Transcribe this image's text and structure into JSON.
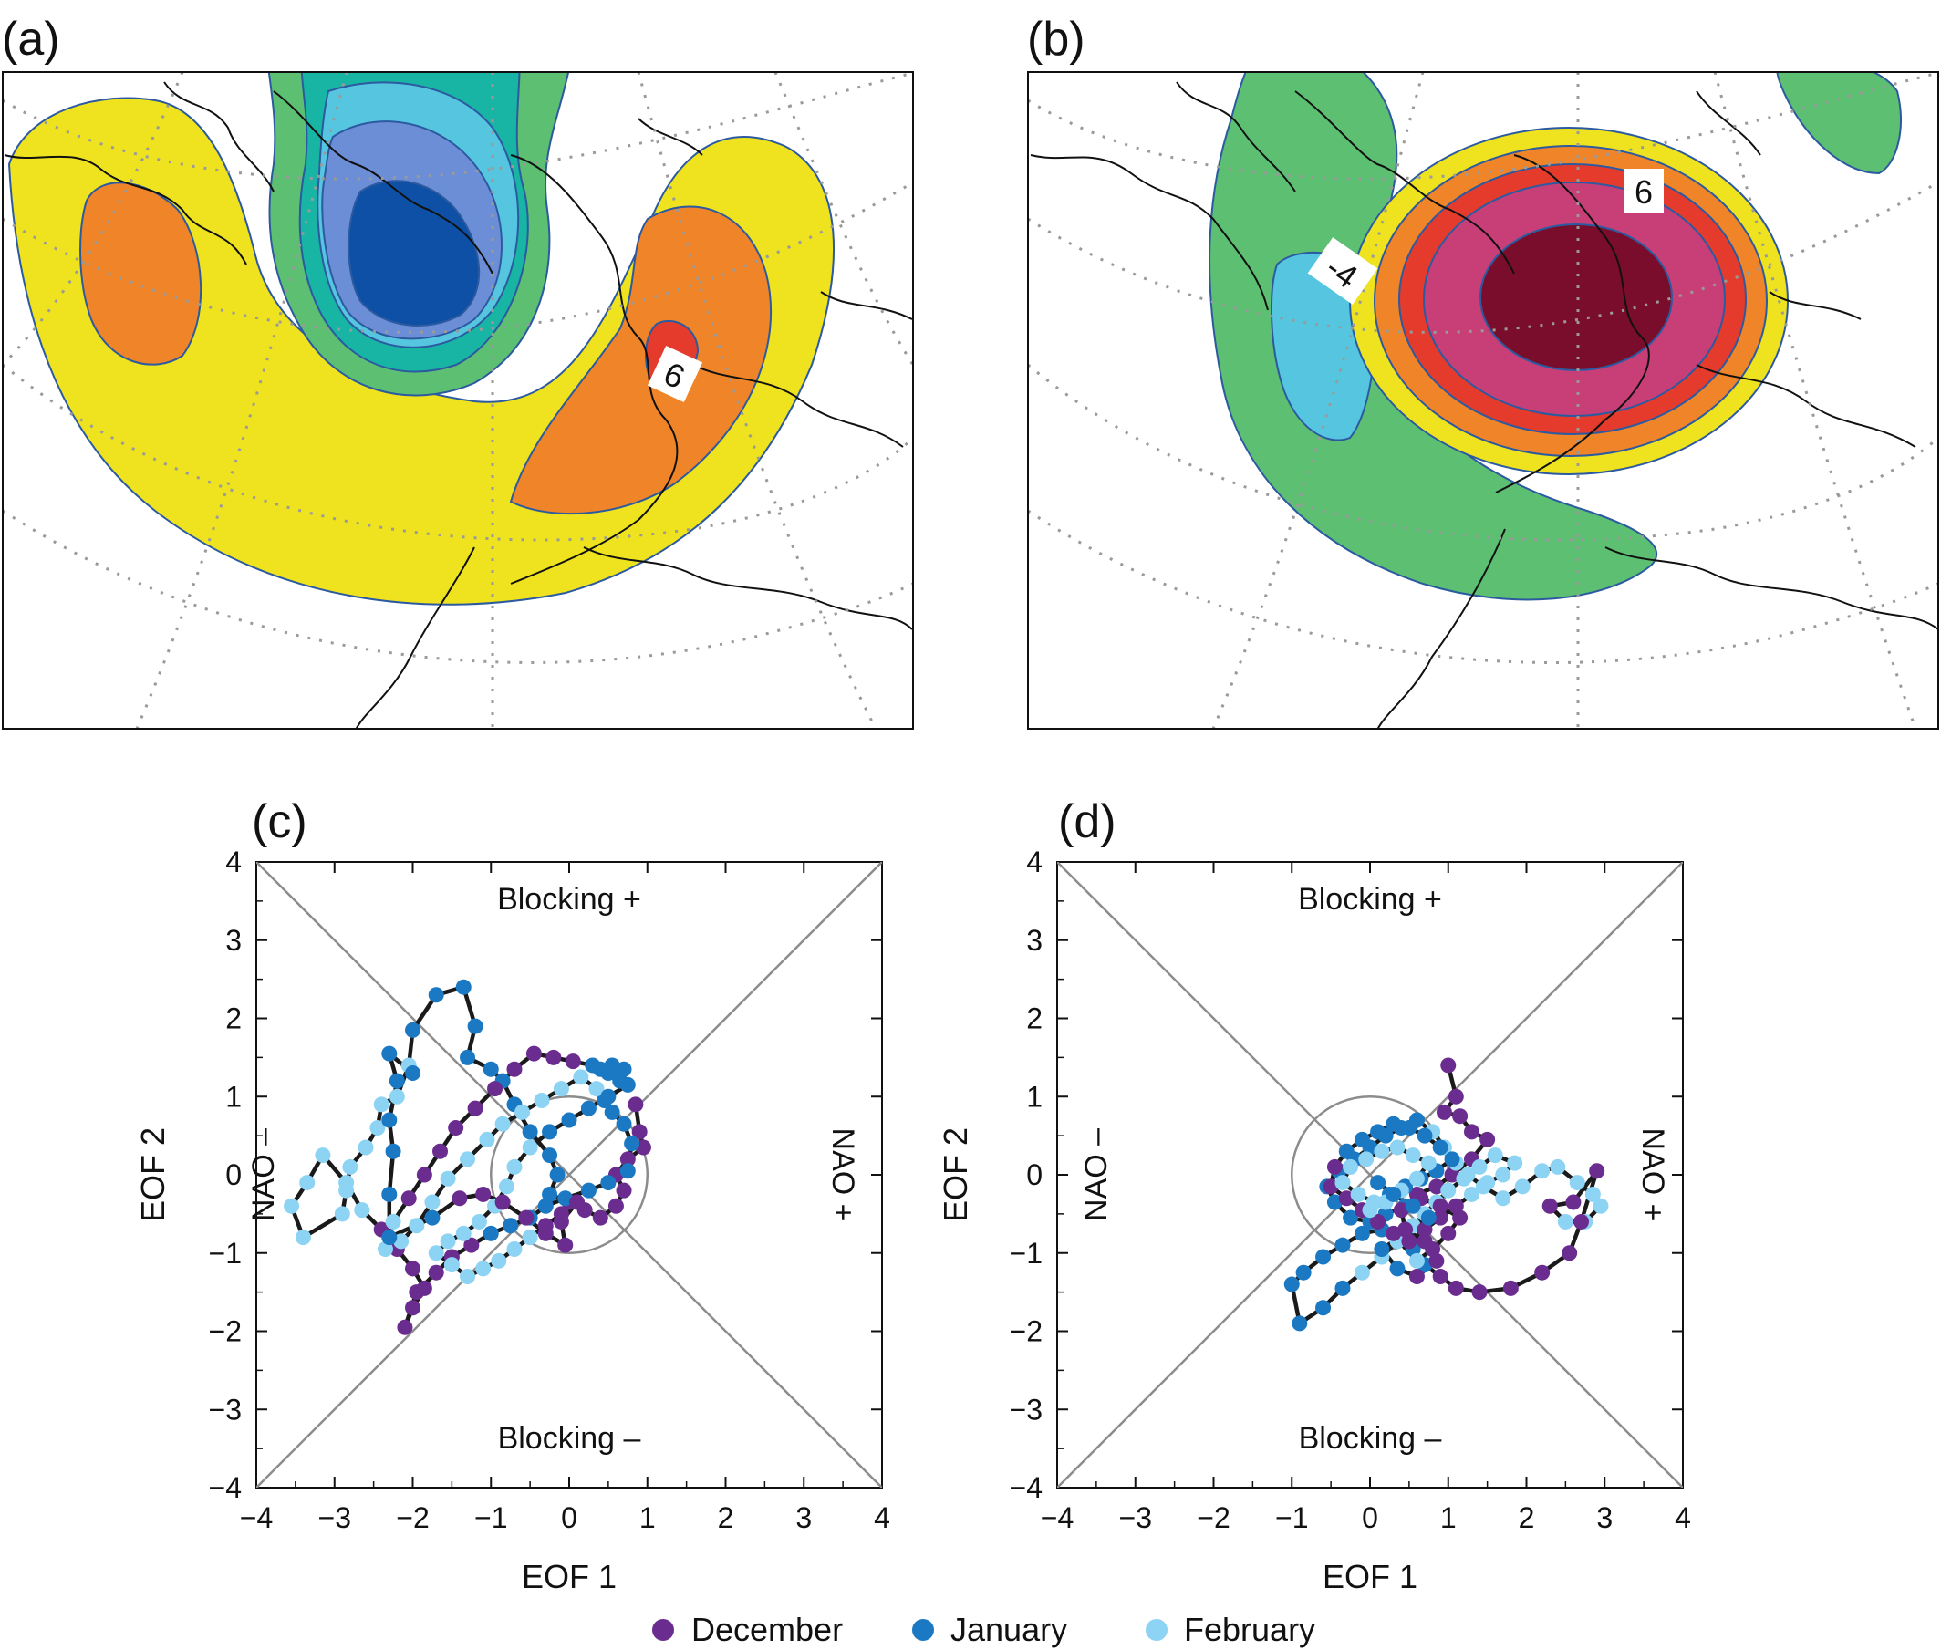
{
  "panels": {
    "a": {
      "label": "(a)",
      "contour_label": "6"
    },
    "b": {
      "label": "(b)",
      "contour_labels": [
        "6",
        "-4"
      ]
    }
  },
  "colors": {
    "dec": "#6b2c8f",
    "jan": "#1b78c2",
    "feb": "#8dd3f3",
    "traj": "#1a1a1a",
    "guide": "#8c8c8c",
    "map_fill": [
      "#0d50a6",
      "#6c8ed6",
      "#56c6e0",
      "#18b5a5",
      "#5cbf72",
      "#eee31e",
      "#ef8528",
      "#e53b2c",
      "#c83f78",
      "#7a0d2b"
    ],
    "coast": "#111111",
    "grid_dot": "#9a9a9a"
  },
  "quadrant_labels": {
    "top": "Blocking +",
    "bottom": "Blocking –",
    "left": "NAO –",
    "right": "NAO +"
  },
  "legend": [
    {
      "key": "dec",
      "label": "December"
    },
    {
      "key": "jan",
      "label": "January"
    },
    {
      "key": "feb",
      "label": "February"
    }
  ],
  "chart_data": [
    {
      "panel": "(c)",
      "type": "scatter",
      "xlabel": "EOF 1",
      "ylabel": "EOF 2",
      "xlim": [
        -4,
        4
      ],
      "ylim": [
        -4,
        4
      ],
      "xticks": [
        "−4",
        "−3",
        "−2",
        "−1",
        "0",
        "1",
        "2",
        "3",
        "4"
      ],
      "yticks": [
        "4",
        "3",
        "2",
        "1",
        "0",
        "−1",
        "−2",
        "−3",
        "−4"
      ],
      "unit_circle_radius": 1,
      "diagonals": true,
      "month_pattern": "10 December, 12 January, 14 February repeated along the trajectory",
      "trajectory": [
        [
          0.85,
          0.9
        ],
        [
          0.9,
          0.55
        ],
        [
          0.95,
          0.35
        ],
        [
          0.75,
          0.2
        ],
        [
          0.6,
          0.0
        ],
        [
          0.7,
          -0.2
        ],
        [
          0.6,
          -0.4
        ],
        [
          0.4,
          -0.55
        ],
        [
          0.2,
          -0.45
        ],
        [
          0.0,
          -0.35
        ],
        [
          -0.25,
          -0.25
        ],
        [
          -0.15,
          0.0
        ],
        [
          -0.25,
          0.25
        ],
        [
          -0.5,
          0.55
        ],
        [
          -0.7,
          0.9
        ],
        [
          -0.85,
          1.2
        ],
        [
          -1.0,
          1.35
        ],
        [
          -1.3,
          1.5
        ],
        [
          -1.2,
          1.9
        ],
        [
          -1.35,
          2.4
        ],
        [
          -1.7,
          2.3
        ],
        [
          -2.0,
          1.85
        ],
        [
          -2.05,
          1.4
        ],
        [
          -2.2,
          1.0
        ],
        [
          -2.4,
          0.9
        ],
        [
          -2.45,
          0.6
        ],
        [
          -2.6,
          0.35
        ],
        [
          -2.8,
          0.1
        ],
        [
          -2.85,
          -0.2
        ],
        [
          -2.9,
          -0.5
        ],
        [
          -3.4,
          -0.8
        ],
        [
          -3.55,
          -0.4
        ],
        [
          -3.35,
          -0.1
        ],
        [
          -3.15,
          0.25
        ],
        [
          -2.85,
          -0.1
        ],
        [
          -2.65,
          -0.45
        ],
        [
          -2.4,
          -0.7
        ],
        [
          -2.2,
          -0.95
        ],
        [
          -2.0,
          -1.2
        ],
        [
          -1.85,
          -1.45
        ],
        [
          -2.0,
          -1.7
        ],
        [
          -2.1,
          -1.95
        ],
        [
          -1.95,
          -1.5
        ],
        [
          -1.7,
          -1.25
        ],
        [
          -1.5,
          -1.05
        ],
        [
          -1.25,
          -0.9
        ],
        [
          -1.0,
          -0.75
        ],
        [
          -0.75,
          -0.65
        ],
        [
          -0.5,
          -0.55
        ],
        [
          -0.3,
          -0.4
        ],
        [
          -0.05,
          -0.3
        ],
        [
          0.25,
          -0.2
        ],
        [
          0.5,
          -0.1
        ],
        [
          0.75,
          0.05
        ],
        [
          0.8,
          0.4
        ],
        [
          0.7,
          0.65
        ],
        [
          0.55,
          0.8
        ],
        [
          0.45,
          0.95
        ],
        [
          0.35,
          1.1
        ],
        [
          0.15,
          1.25
        ],
        [
          -0.1,
          1.1
        ],
        [
          -0.35,
          0.95
        ],
        [
          -0.6,
          0.8
        ],
        [
          -0.85,
          0.65
        ],
        [
          -1.05,
          0.45
        ],
        [
          -1.3,
          0.2
        ],
        [
          -1.55,
          -0.05
        ],
        [
          -1.75,
          -0.35
        ],
        [
          -1.95,
          -0.65
        ],
        [
          -2.15,
          -0.85
        ],
        [
          -2.35,
          -0.95
        ],
        [
          -2.25,
          -0.6
        ],
        [
          -2.05,
          -0.3
        ],
        [
          -1.85,
          0.0
        ],
        [
          -1.65,
          0.3
        ],
        [
          -1.45,
          0.6
        ],
        [
          -1.2,
          0.85
        ],
        [
          -0.95,
          1.1
        ],
        [
          -0.7,
          1.35
        ],
        [
          -0.45,
          1.55
        ],
        [
          -0.2,
          1.5
        ],
        [
          0.05,
          1.45
        ],
        [
          0.3,
          1.4
        ],
        [
          0.5,
          1.3
        ],
        [
          0.65,
          1.2
        ],
        [
          0.7,
          1.35
        ],
        [
          0.55,
          1.4
        ],
        [
          0.4,
          1.35
        ],
        [
          0.6,
          1.3
        ],
        [
          0.75,
          1.15
        ],
        [
          0.5,
          1.0
        ],
        [
          0.25,
          0.85
        ],
        [
          0.0,
          0.7
        ],
        [
          -0.25,
          0.55
        ],
        [
          -0.5,
          0.35
        ],
        [
          -0.7,
          0.1
        ],
        [
          -0.8,
          -0.15
        ],
        [
          -0.95,
          -0.4
        ],
        [
          -1.15,
          -0.6
        ],
        [
          -1.35,
          -0.75
        ],
        [
          -1.55,
          -0.85
        ],
        [
          -1.7,
          -1.0
        ],
        [
          -1.5,
          -1.15
        ],
        [
          -1.3,
          -1.3
        ],
        [
          -1.1,
          -1.2
        ],
        [
          -0.9,
          -1.1
        ],
        [
          -0.7,
          -0.95
        ],
        [
          -0.5,
          -0.8
        ],
        [
          -0.3,
          -0.65
        ],
        [
          -0.1,
          -0.5
        ],
        [
          0.1,
          -0.35
        ],
        [
          -0.1,
          -0.6
        ],
        [
          -0.05,
          -0.9
        ],
        [
          -0.3,
          -0.75
        ],
        [
          -0.55,
          -0.55
        ],
        [
          -0.85,
          -0.35
        ],
        [
          -1.1,
          -0.25
        ],
        [
          -1.4,
          -0.3
        ],
        [
          -1.75,
          -0.55
        ],
        [
          -2.3,
          -0.8
        ],
        [
          -2.3,
          -0.25
        ],
        [
          -2.25,
          0.3
        ],
        [
          -2.3,
          0.7
        ],
        [
          -2.2,
          1.2
        ],
        [
          -2.3,
          1.55
        ],
        [
          -2.0,
          1.3
        ]
      ]
    },
    {
      "panel": "(d)",
      "type": "scatter",
      "xlabel": "EOF 1",
      "ylabel": "EOF 2",
      "xlim": [
        -4,
        4
      ],
      "ylim": [
        -4,
        4
      ],
      "xticks": [
        "−4",
        "−3",
        "−2",
        "−1",
        "0",
        "1",
        "2",
        "3",
        "4"
      ],
      "yticks": [
        "4",
        "3",
        "2",
        "1",
        "0",
        "−1",
        "−2",
        "−3",
        "−4"
      ],
      "unit_circle_radius": 1,
      "diagonals": true,
      "month_pattern": "10 December, 12 January, 14 February repeated along the trajectory",
      "trajectory": [
        [
          1.0,
          1.4
        ],
        [
          1.1,
          1.0
        ],
        [
          0.95,
          0.8
        ],
        [
          1.15,
          0.75
        ],
        [
          1.3,
          0.55
        ],
        [
          1.5,
          0.45
        ],
        [
          1.3,
          0.2
        ],
        [
          1.05,
          0.0
        ],
        [
          0.85,
          -0.15
        ],
        [
          0.6,
          -0.25
        ],
        [
          0.45,
          -0.4
        ],
        [
          0.2,
          -0.5
        ],
        [
          0.0,
          -0.6
        ],
        [
          -0.25,
          -0.55
        ],
        [
          -0.45,
          -0.35
        ],
        [
          -0.55,
          -0.15
        ],
        [
          -0.4,
          0.05
        ],
        [
          -0.2,
          0.2
        ],
        [
          0.0,
          0.35
        ],
        [
          0.2,
          0.5
        ],
        [
          0.4,
          0.6
        ],
        [
          0.6,
          0.7
        ],
        [
          0.8,
          0.55
        ],
        [
          0.95,
          0.35
        ],
        [
          1.1,
          0.15
        ],
        [
          1.25,
          0.0
        ],
        [
          1.45,
          -0.15
        ],
        [
          1.7,
          -0.3
        ],
        [
          1.95,
          -0.15
        ],
        [
          2.2,
          0.05
        ],
        [
          2.4,
          0.1
        ],
        [
          2.65,
          -0.1
        ],
        [
          2.85,
          -0.25
        ],
        [
          2.95,
          -0.4
        ],
        [
          2.75,
          -0.6
        ],
        [
          2.5,
          -0.6
        ],
        [
          2.3,
          -0.4
        ],
        [
          2.6,
          -0.35
        ],
        [
          2.9,
          0.05
        ],
        [
          2.7,
          -0.6
        ],
        [
          2.55,
          -1.0
        ],
        [
          2.2,
          -1.25
        ],
        [
          1.8,
          -1.45
        ],
        [
          1.4,
          -1.5
        ],
        [
          1.1,
          -1.45
        ],
        [
          0.9,
          -1.3
        ],
        [
          0.7,
          -1.15
        ],
        [
          0.55,
          -0.95
        ],
        [
          0.35,
          -0.8
        ],
        [
          0.15,
          -0.7
        ],
        [
          -0.1,
          -0.75
        ],
        [
          -0.35,
          -0.9
        ],
        [
          -0.6,
          -1.05
        ],
        [
          -0.85,
          -1.25
        ],
        [
          -1.0,
          -1.4
        ],
        [
          -0.9,
          -1.9
        ],
        [
          -0.6,
          -1.7
        ],
        [
          -0.35,
          -1.45
        ],
        [
          -0.1,
          -1.25
        ],
        [
          0.15,
          -1.05
        ],
        [
          0.35,
          -0.85
        ],
        [
          0.55,
          -0.65
        ],
        [
          0.7,
          -0.5
        ],
        [
          0.85,
          -0.35
        ],
        [
          1.0,
          -0.2
        ],
        [
          1.2,
          -0.05
        ],
        [
          1.4,
          0.1
        ],
        [
          1.6,
          0.25
        ],
        [
          1.85,
          0.15
        ],
        [
          1.7,
          0.0
        ],
        [
          1.5,
          -0.1
        ],
        [
          1.3,
          -0.25
        ],
        [
          1.1,
          -0.4
        ],
        [
          0.9,
          -0.55
        ],
        [
          0.7,
          -0.7
        ],
        [
          0.5,
          -0.85
        ],
        [
          0.3,
          -0.75
        ],
        [
          0.1,
          -0.6
        ],
        [
          -0.1,
          -0.45
        ],
        [
          -0.3,
          -0.3
        ],
        [
          -0.5,
          -0.15
        ],
        [
          -0.45,
          0.1
        ],
        [
          -0.3,
          0.3
        ],
        [
          -0.1,
          0.45
        ],
        [
          0.1,
          0.55
        ],
        [
          0.3,
          0.65
        ],
        [
          0.5,
          0.6
        ],
        [
          0.7,
          0.5
        ],
        [
          0.9,
          0.35
        ],
        [
          1.05,
          0.2
        ],
        [
          0.85,
          0.05
        ],
        [
          0.65,
          -0.05
        ],
        [
          0.45,
          -0.15
        ],
        [
          0.25,
          -0.25
        ],
        [
          0.05,
          -0.35
        ],
        [
          -0.15,
          -0.25
        ],
        [
          -0.35,
          -0.1
        ],
        [
          -0.25,
          0.1
        ],
        [
          -0.05,
          0.2
        ],
        [
          0.15,
          0.3
        ],
        [
          0.35,
          0.35
        ],
        [
          0.55,
          0.25
        ],
        [
          0.75,
          0.15
        ],
        [
          0.6,
          -0.05
        ],
        [
          0.4,
          -0.2
        ],
        [
          0.2,
          -0.35
        ],
        [
          0.0,
          -0.45
        ],
        [
          0.6,
          -1.1
        ],
        [
          0.8,
          -0.95
        ],
        [
          1.0,
          -0.75
        ],
        [
          1.15,
          -0.55
        ],
        [
          0.9,
          -0.4
        ],
        [
          0.65,
          -0.3
        ],
        [
          0.4,
          -0.45
        ],
        [
          0.45,
          -0.7
        ],
        [
          0.7,
          -0.85
        ],
        [
          0.85,
          -1.1
        ],
        [
          0.6,
          -1.3
        ],
        [
          0.35,
          -1.2
        ],
        [
          0.15,
          -0.95
        ],
        [
          0.75,
          -0.55
        ],
        [
          0.55,
          -0.4
        ],
        [
          0.3,
          -0.25
        ],
        [
          0.1,
          -0.1
        ]
      ]
    }
  ]
}
